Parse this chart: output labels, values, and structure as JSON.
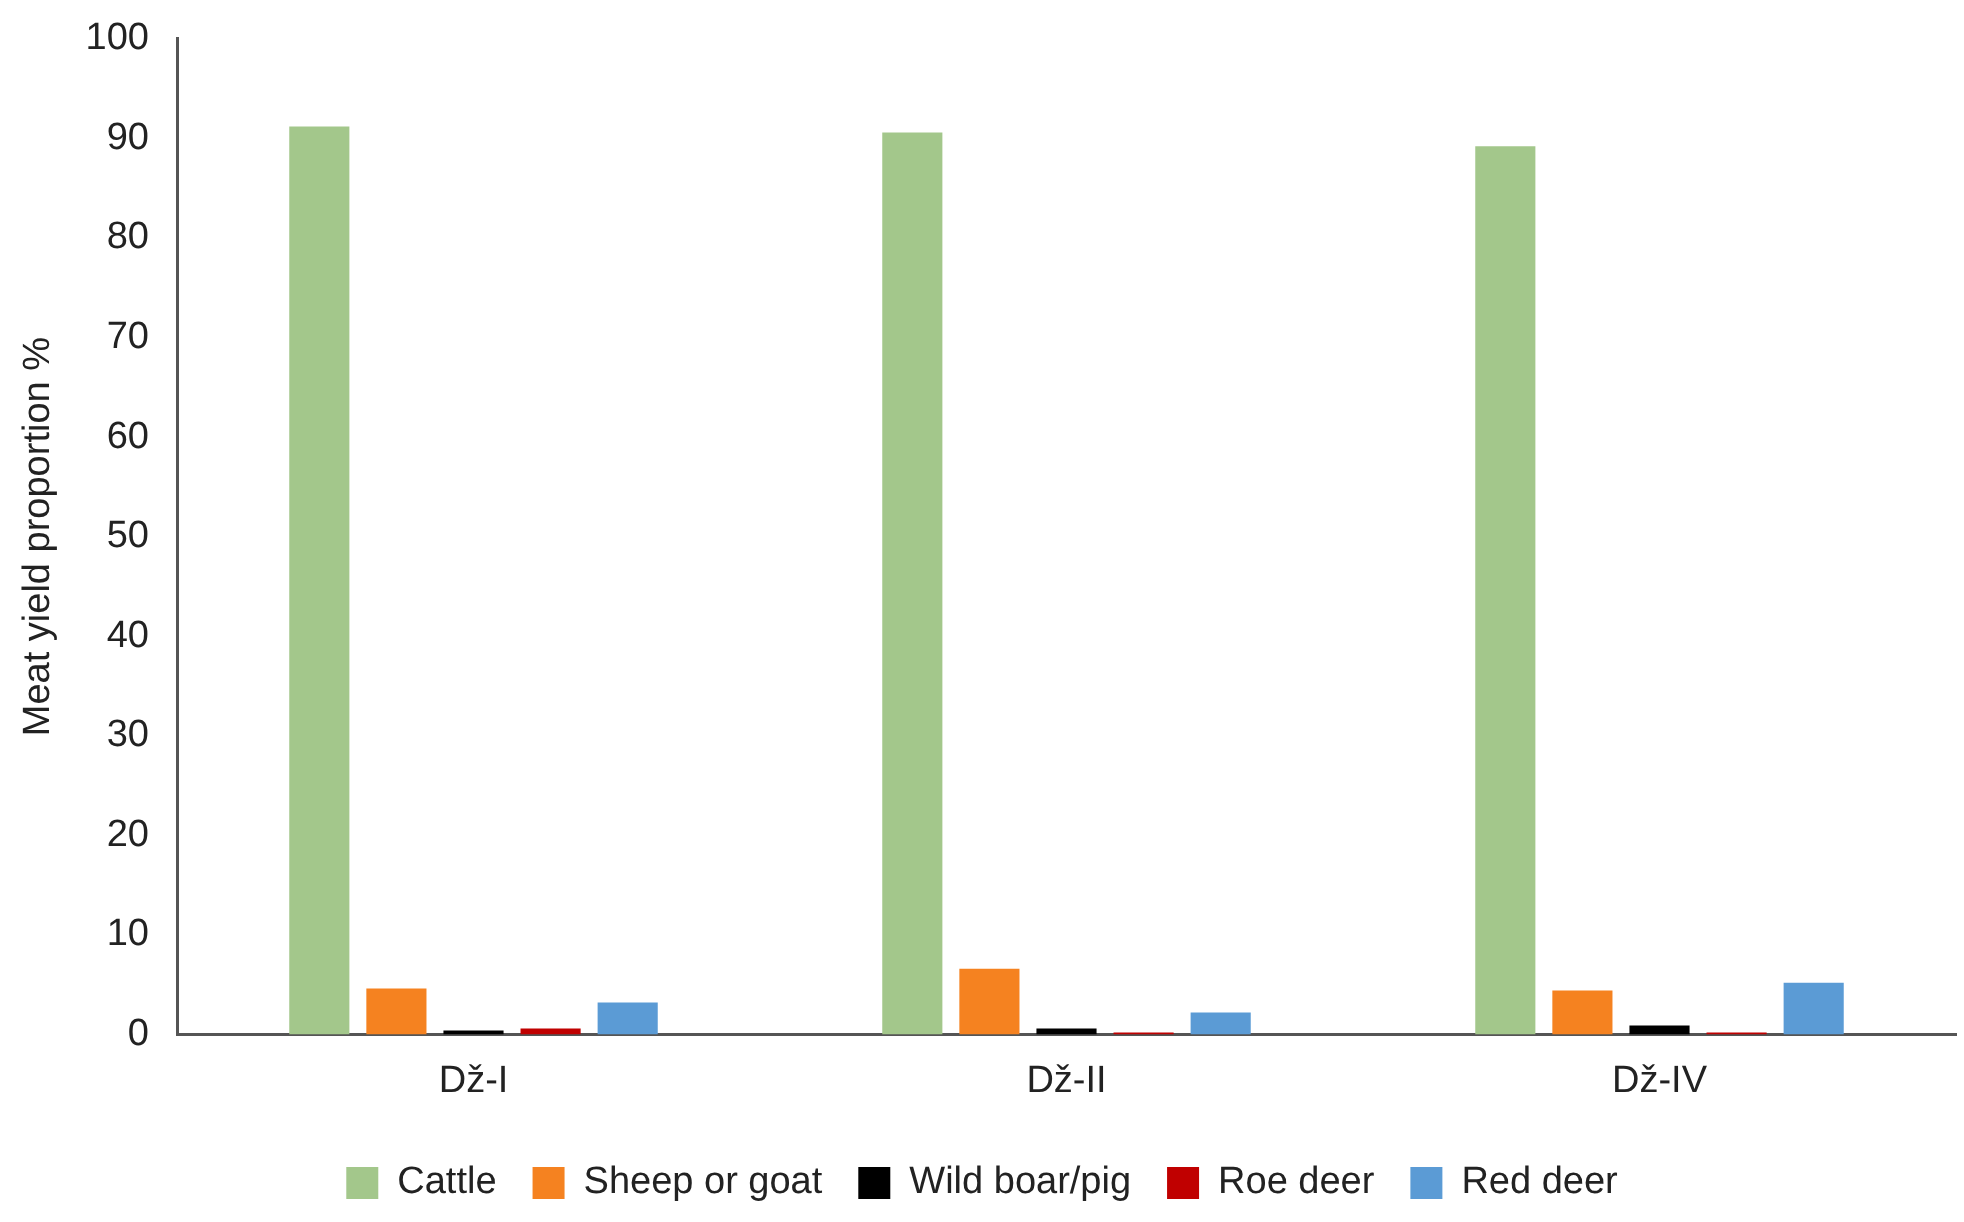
{
  "chart_data": {
    "type": "bar",
    "ylabel": "Meat yield proportion %",
    "categories": [
      "Dž-I",
      "Dž-II",
      "Dž-IV"
    ],
    "series": [
      {
        "name": "Cattle",
        "color": "#a3c78b",
        "values": [
          91.2,
          90.6,
          89.2
        ]
      },
      {
        "name": "Sheep or goat",
        "color": "#f58220",
        "values": [
          4.6,
          6.6,
          4.4
        ]
      },
      {
        "name": "Wild boar/pig",
        "color": "#000000",
        "values": [
          0.4,
          0.6,
          0.9
        ]
      },
      {
        "name": "Roe deer",
        "color": "#c00000",
        "values": [
          0.6,
          0.2,
          0.2
        ]
      },
      {
        "name": "Red deer",
        "color": "#5b9bd5",
        "values": [
          3.2,
          2.2,
          5.2
        ]
      }
    ],
    "ylim": [
      0,
      100
    ],
    "yticks": [
      0,
      10,
      20,
      30,
      40,
      50,
      60,
      70,
      80,
      90,
      100
    ],
    "grid": false,
    "legend": "bottom"
  }
}
